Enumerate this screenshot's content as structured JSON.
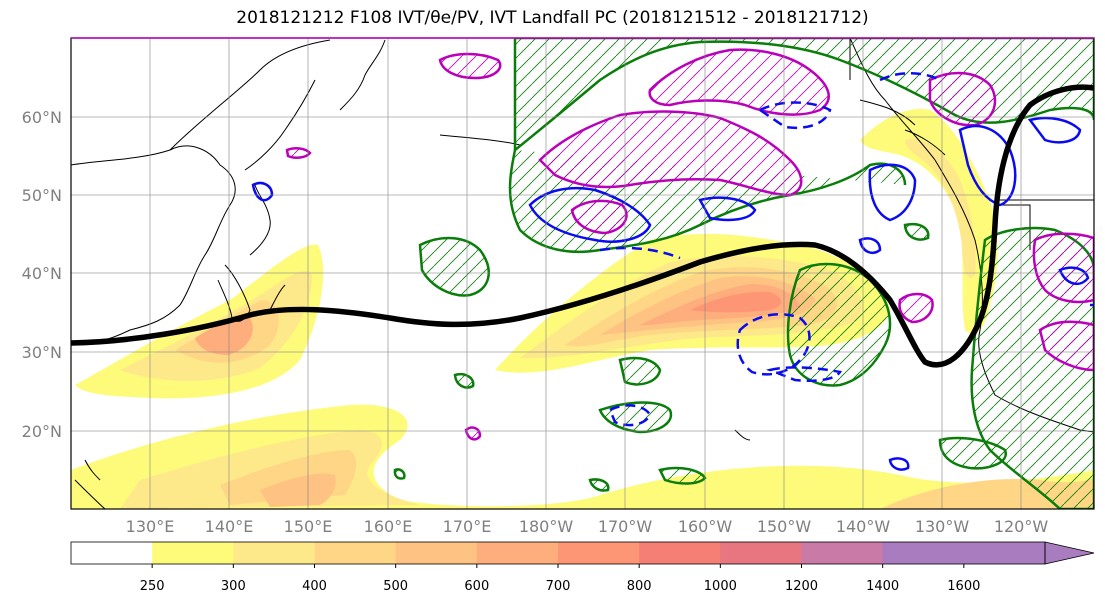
{
  "title": "2018121212 F108 IVT/θe/PV, IVT Landfall PC (2018121512 - 2018121712)",
  "map": {
    "lat_labels": [
      "60°N",
      "50°N",
      "40°N",
      "30°N",
      "20°N"
    ],
    "lon_labels": [
      "130°E",
      "140°E",
      "150°E",
      "160°E",
      "170°E",
      "180°W",
      "170°W",
      "160°W",
      "150°W",
      "140°W",
      "130°W",
      "120°W"
    ]
  },
  "colorbar": {
    "ticks": [
      "250",
      "300",
      "400",
      "500",
      "600",
      "700",
      "800",
      "1000",
      "1200",
      "1400",
      "1600"
    ],
    "colors": [
      "#ffffff",
      "#fefb7a",
      "#fee98a",
      "#fed686",
      "#fec283",
      "#fead7d",
      "#fd9675",
      "#f57f74",
      "#e87681",
      "#c97aa6",
      "#a97cc0",
      "#a97cc0"
    ]
  },
  "colors": {
    "jet_line": "#000000",
    "theta_contour": "#0a7d0a",
    "pv_contour": "#bb00bb",
    "blue_contour": "#0b0bf0"
  }
}
